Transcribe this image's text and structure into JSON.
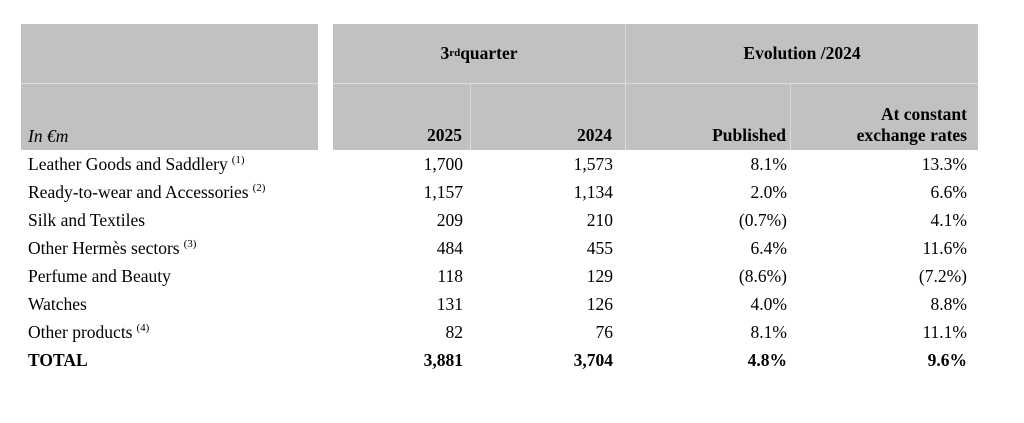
{
  "table": {
    "unit_label": "In €m",
    "header": {
      "quarter_group": {
        "prefix": "3",
        "sup": "rd",
        "suffix": " quarter"
      },
      "evolution_group": "Evolution /2024",
      "col_2025": "2025",
      "col_2024": "2024",
      "col_published": "Published",
      "col_constant_line1": "At constant",
      "col_constant_line2": "exchange rates"
    },
    "rows": [
      {
        "label": "Leather Goods and Saddlery",
        "sup": "(1)",
        "q3_2025": "1,700",
        "q3_2024": "1,573",
        "published": "8.1%",
        "constant": "13.3%",
        "bold": false
      },
      {
        "label": "Ready-to-wear and Accessories",
        "sup": "(2)",
        "q3_2025": "1,157",
        "q3_2024": "1,134",
        "published": "2.0%",
        "constant": "6.6%",
        "bold": false
      },
      {
        "label": "Silk and Textiles",
        "sup": "",
        "q3_2025": "209",
        "q3_2024": "210",
        "published": "(0.7%)",
        "constant": "4.1%",
        "bold": false
      },
      {
        "label": "Other Hermès sectors",
        "sup": "(3)",
        "q3_2025": "484",
        "q3_2024": "455",
        "published": "6.4%",
        "constant": "11.6%",
        "bold": false
      },
      {
        "label": "Perfume and Beauty",
        "sup": "",
        "q3_2025": "118",
        "q3_2024": "129",
        "published": "(8.6%)",
        "constant": "(7.2%)",
        "bold": false
      },
      {
        "label": "Watches",
        "sup": "",
        "q3_2025": "131",
        "q3_2024": "126",
        "published": "4.0%",
        "constant": "8.8%",
        "bold": false
      },
      {
        "label": "Other products",
        "sup": "(4)",
        "q3_2025": "82",
        "q3_2024": "76",
        "published": "8.1%",
        "constant": "11.1%",
        "bold": false
      },
      {
        "label": "TOTAL",
        "sup": "",
        "q3_2025": "3,881",
        "q3_2024": "3,704",
        "published": "4.8%",
        "constant": "9.6%",
        "bold": true
      }
    ]
  },
  "colors": {
    "header_bg": "#c1c1c1",
    "divider": "#dcdcdc",
    "text": "#000000",
    "page_bg": "#ffffff"
  }
}
